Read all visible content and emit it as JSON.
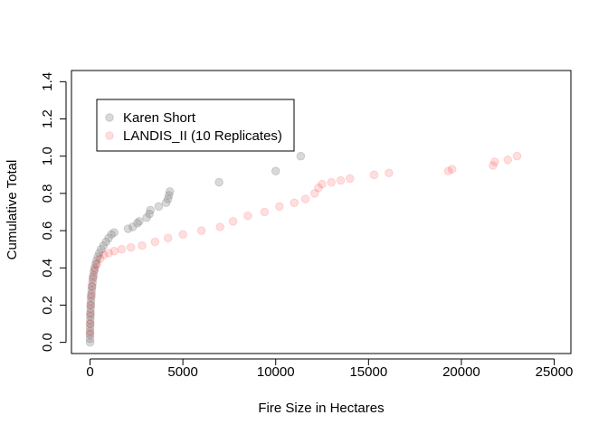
{
  "chart_data": {
    "type": "scatter",
    "title": "",
    "xlabel": "Fire Size in Hectares",
    "ylabel": "Cumulative Total",
    "xlim": [
      -1000,
      25900
    ],
    "ylim": [
      -0.06,
      1.46
    ],
    "xticks": [
      0,
      5000,
      10000,
      15000,
      20000,
      25000
    ],
    "xtick_labels": [
      "0",
      "5000",
      "10000",
      "15000",
      "20000",
      "25000"
    ],
    "yticks": [
      0.0,
      0.2,
      0.4,
      0.6,
      0.8,
      1.0,
      1.2,
      1.4
    ],
    "ytick_labels": [
      "0.0",
      "0.2",
      "0.4",
      "0.6",
      "0.8",
      "1.0",
      "1.2",
      "1.4"
    ],
    "grid": false,
    "legend_position": "top-left",
    "legend": [
      "Karen Short",
      "LANDIS_II (10 Replicates)"
    ],
    "series": [
      {
        "name": "Karen Short",
        "color": "#808080",
        "alpha": 0.3,
        "points": [
          [
            0,
            0.0
          ],
          [
            0,
            0.02
          ],
          [
            0,
            0.04
          ],
          [
            0,
            0.06
          ],
          [
            5,
            0.08
          ],
          [
            10,
            0.1
          ],
          [
            15,
            0.12
          ],
          [
            20,
            0.14
          ],
          [
            25,
            0.16
          ],
          [
            30,
            0.18
          ],
          [
            40,
            0.2
          ],
          [
            50,
            0.22
          ],
          [
            60,
            0.24
          ],
          [
            75,
            0.26
          ],
          [
            90,
            0.28
          ],
          [
            110,
            0.3
          ],
          [
            130,
            0.32
          ],
          [
            150,
            0.34
          ],
          [
            180,
            0.36
          ],
          [
            210,
            0.38
          ],
          [
            250,
            0.4
          ],
          [
            300,
            0.42
          ],
          [
            350,
            0.44
          ],
          [
            420,
            0.46
          ],
          [
            500,
            0.48
          ],
          [
            600,
            0.5
          ],
          [
            720,
            0.52
          ],
          [
            860,
            0.54
          ],
          [
            1000,
            0.56
          ],
          [
            1150,
            0.58
          ],
          [
            1300,
            0.59
          ],
          [
            2050,
            0.61
          ],
          [
            2300,
            0.62
          ],
          [
            2550,
            0.64
          ],
          [
            2650,
            0.65
          ],
          [
            3050,
            0.67
          ],
          [
            3200,
            0.69
          ],
          [
            3250,
            0.71
          ],
          [
            3700,
            0.73
          ],
          [
            4100,
            0.75
          ],
          [
            4200,
            0.77
          ],
          [
            4250,
            0.79
          ],
          [
            4300,
            0.81
          ],
          [
            6950,
            0.86
          ],
          [
            10000,
            0.92
          ],
          [
            11350,
            1.0
          ]
        ]
      },
      {
        "name": "LANDIS_II (10 Replicates)",
        "color": "#ff0000",
        "alpha": 0.13,
        "points": [
          [
            0,
            0.05
          ],
          [
            5,
            0.1
          ],
          [
            15,
            0.15
          ],
          [
            30,
            0.2
          ],
          [
            60,
            0.25
          ],
          [
            100,
            0.3
          ],
          [
            160,
            0.35
          ],
          [
            250,
            0.39
          ],
          [
            380,
            0.42
          ],
          [
            550,
            0.45
          ],
          [
            750,
            0.47
          ],
          [
            1000,
            0.48
          ],
          [
            1300,
            0.49
          ],
          [
            1700,
            0.5
          ],
          [
            2200,
            0.51
          ],
          [
            2800,
            0.52
          ],
          [
            3500,
            0.54
          ],
          [
            4200,
            0.56
          ],
          [
            5000,
            0.58
          ],
          [
            6000,
            0.6
          ],
          [
            7000,
            0.62
          ],
          [
            7700,
            0.65
          ],
          [
            8500,
            0.68
          ],
          [
            9400,
            0.7
          ],
          [
            10200,
            0.73
          ],
          [
            11000,
            0.75
          ],
          [
            11600,
            0.77
          ],
          [
            12100,
            0.8
          ],
          [
            12300,
            0.83
          ],
          [
            12500,
            0.85
          ],
          [
            13000,
            0.86
          ],
          [
            13500,
            0.87
          ],
          [
            14000,
            0.88
          ],
          [
            15300,
            0.9
          ],
          [
            16100,
            0.91
          ],
          [
            19300,
            0.92
          ],
          [
            19500,
            0.93
          ],
          [
            21700,
            0.95
          ],
          [
            21800,
            0.97
          ],
          [
            22500,
            0.98
          ],
          [
            23000,
            1.0
          ]
        ]
      }
    ]
  }
}
